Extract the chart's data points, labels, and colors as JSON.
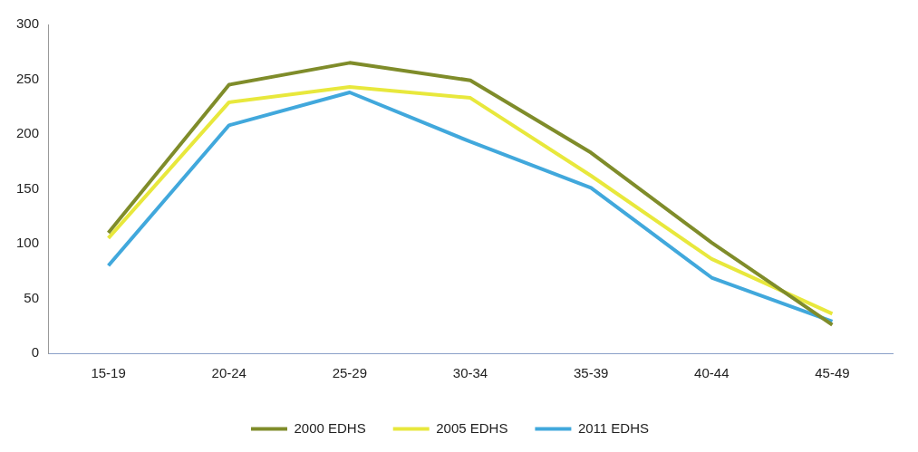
{
  "chart_data": {
    "type": "line",
    "categories": [
      "15-19",
      "20-24",
      "25-29",
      "30-34",
      "35-39",
      "40-44",
      "45-49"
    ],
    "series": [
      {
        "name": "2000 EDHS",
        "color": "#7f8c2a",
        "values": [
          110,
          245,
          265,
          249,
          183,
          101,
          26
        ]
      },
      {
        "name": "2005 EDHS",
        "color": "#e8e83c",
        "values": [
          105,
          229,
          243,
          233,
          162,
          86,
          36
        ]
      },
      {
        "name": "2011 EDHS",
        "color": "#41a8dc",
        "values": [
          80,
          208,
          238,
          193,
          151,
          69,
          29
        ]
      }
    ],
    "ylim": [
      0,
      300
    ],
    "yticks": [
      0,
      50,
      100,
      150,
      200,
      250,
      300
    ],
    "grid": false,
    "legend": "bottom",
    "marker": "none",
    "line_style": "solid"
  }
}
